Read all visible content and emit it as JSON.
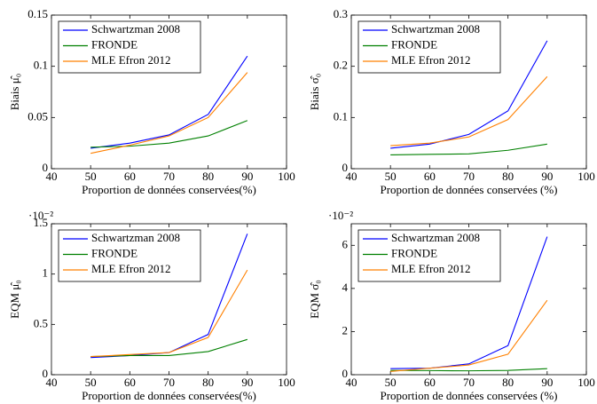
{
  "chart_data": [
    {
      "type": "line",
      "xlabel": "Proportion de données conservées(%)",
      "ylabel": "Biais μ̂₀",
      "x": [
        50,
        60,
        70,
        80,
        90
      ],
      "xlim": [
        40,
        100
      ],
      "xticks": [
        40,
        50,
        60,
        70,
        80,
        90,
        100
      ],
      "ylim": [
        0,
        0.15
      ],
      "yticks": [
        0,
        0.05,
        0.1,
        0.15
      ],
      "legend": "top-left",
      "grid": false,
      "series": [
        {
          "name": "Schwartzman 2008",
          "color": "#0000ff",
          "values": [
            0.02,
            0.025,
            0.033,
            0.053,
            0.11
          ]
        },
        {
          "name": "FRONDE",
          "color": "#008000",
          "values": [
            0.021,
            0.022,
            0.025,
            0.032,
            0.047
          ]
        },
        {
          "name": "MLE Efron 2012",
          "color": "#ff8000",
          "values": [
            0.015,
            0.023,
            0.032,
            0.05,
            0.094
          ]
        }
      ]
    },
    {
      "type": "line",
      "xlabel": "Proportion de données conservées (%)",
      "ylabel": "Biais σ̂₀",
      "x": [
        50,
        60,
        70,
        80,
        90
      ],
      "xlim": [
        40,
        100
      ],
      "xticks": [
        40,
        50,
        60,
        70,
        80,
        90,
        100
      ],
      "ylim": [
        0,
        0.3
      ],
      "yticks": [
        0,
        0.1,
        0.2,
        0.3
      ],
      "legend": "top-left",
      "grid": false,
      "series": [
        {
          "name": "Schwartzman 2008",
          "color": "#0000ff",
          "values": [
            0.04,
            0.048,
            0.067,
            0.113,
            0.25
          ]
        },
        {
          "name": "FRONDE",
          "color": "#008000",
          "values": [
            0.027,
            0.028,
            0.029,
            0.036,
            0.048
          ]
        },
        {
          "name": "MLE Efron 2012",
          "color": "#ff8000",
          "values": [
            0.045,
            0.05,
            0.062,
            0.096,
            0.18
          ]
        }
      ]
    },
    {
      "type": "line",
      "xlabel": "Proportion de données conservées(%)",
      "ylabel": "EQM μ̂₀",
      "scale_label": "·10⁻²",
      "x": [
        50,
        60,
        70,
        80,
        90
      ],
      "xlim": [
        40,
        100
      ],
      "xticks": [
        40,
        50,
        60,
        70,
        80,
        90,
        100
      ],
      "ylim": [
        0,
        1.5
      ],
      "yticks": [
        0,
        0.5,
        1,
        1.5
      ],
      "legend": "top-left",
      "grid": false,
      "series": [
        {
          "name": "Schwartzman 2008",
          "color": "#0000ff",
          "values": [
            0.17,
            0.19,
            0.22,
            0.4,
            1.4
          ]
        },
        {
          "name": "FRONDE",
          "color": "#008000",
          "values": [
            0.18,
            0.19,
            0.19,
            0.23,
            0.35
          ]
        },
        {
          "name": "MLE Efron 2012",
          "color": "#ff8000",
          "values": [
            0.18,
            0.2,
            0.22,
            0.37,
            1.04
          ]
        }
      ]
    },
    {
      "type": "line",
      "xlabel": "Proportion de données conservées (%)",
      "ylabel": "EQM σ̂₀",
      "scale_label": "·10⁻²",
      "x": [
        50,
        60,
        70,
        80,
        90
      ],
      "xlim": [
        40,
        100
      ],
      "xticks": [
        40,
        50,
        60,
        70,
        80,
        90,
        100
      ],
      "ylim": [
        0,
        7
      ],
      "yticks": [
        0,
        2,
        4,
        6
      ],
      "legend": "top-left",
      "grid": false,
      "series": [
        {
          "name": "Schwartzman 2008",
          "color": "#0000ff",
          "values": [
            0.28,
            0.3,
            0.5,
            1.35,
            6.4
          ]
        },
        {
          "name": "FRONDE",
          "color": "#008000",
          "values": [
            0.2,
            0.19,
            0.18,
            0.2,
            0.28
          ]
        },
        {
          "name": "MLE Efron 2012",
          "color": "#ff8000",
          "values": [
            0.15,
            0.3,
            0.45,
            0.95,
            3.45
          ]
        }
      ]
    }
  ]
}
